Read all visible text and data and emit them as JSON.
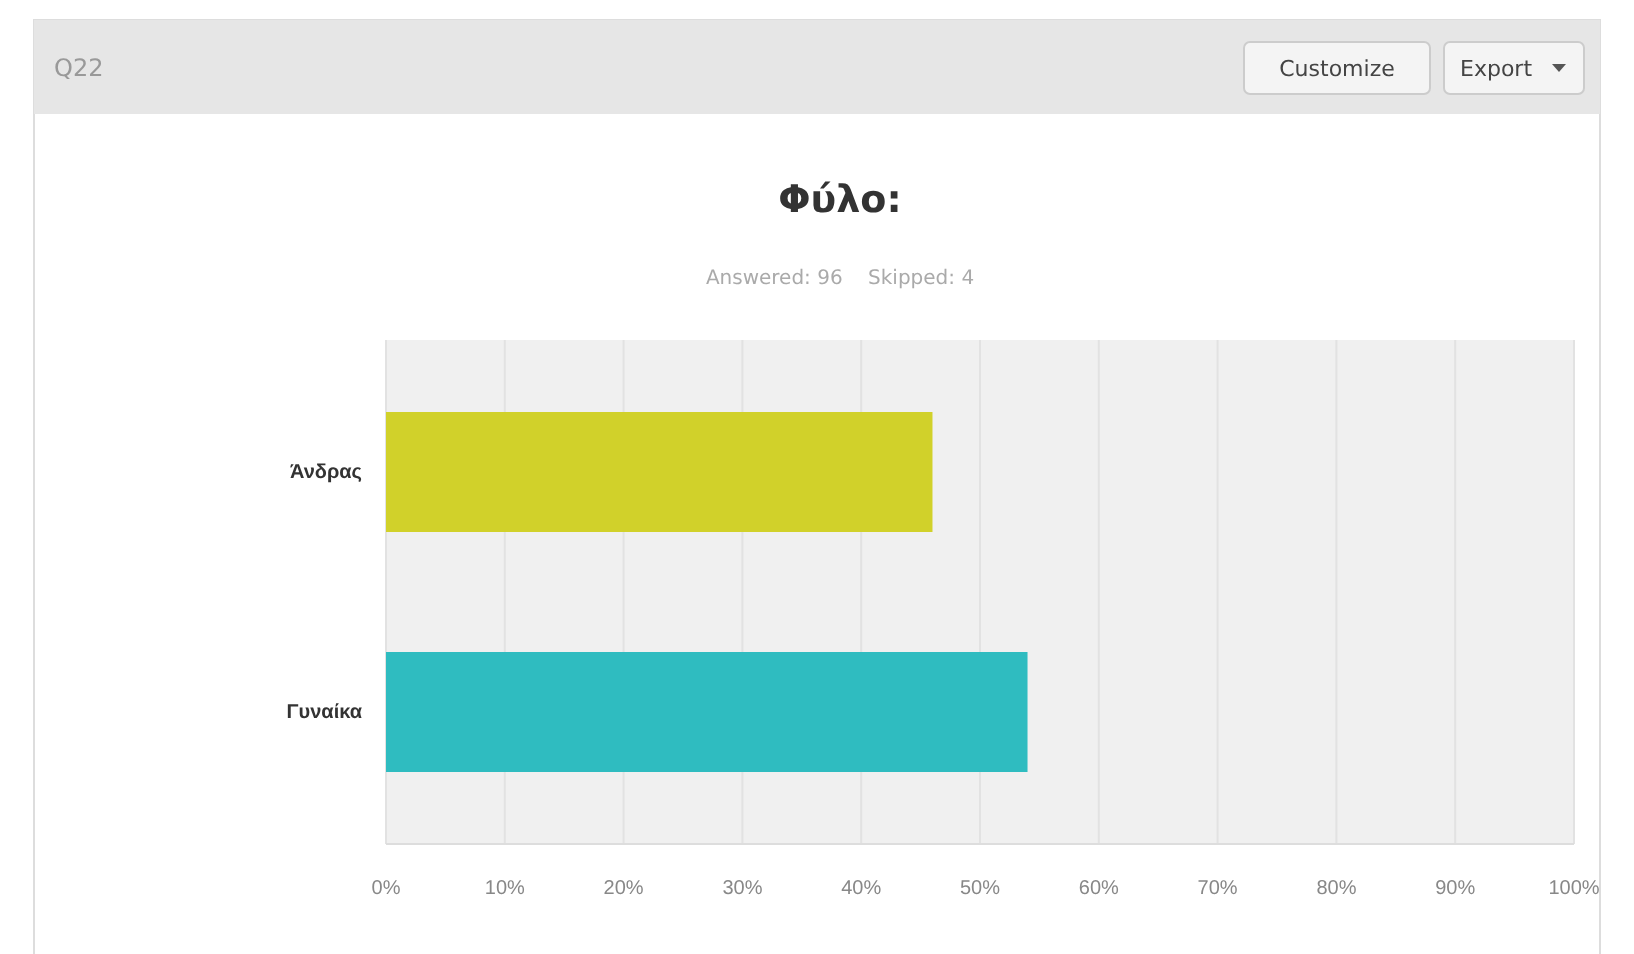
{
  "chart_data": {
    "type": "bar",
    "orientation": "horizontal",
    "title": "Φύλο:",
    "subtitle": "Answered: 96    Skipped: 4",
    "annotations": [
      "Q22",
      "Customize",
      "Export"
    ],
    "categories": [
      "Άνδρας",
      "Γυναίκα"
    ],
    "values": [
      46,
      54
    ],
    "colors": [
      "#d1d12a",
      "#2fbcc0"
    ],
    "xlim": [
      0,
      100
    ],
    "xticks": [
      {
        "value": 0,
        "label": "0%"
      },
      {
        "value": 10,
        "label": "10%"
      },
      {
        "value": 20,
        "label": "20%"
      },
      {
        "value": 30,
        "label": "30%"
      },
      {
        "value": 40,
        "label": "40%"
      },
      {
        "value": 50,
        "label": "50%"
      },
      {
        "value": 60,
        "label": "60%"
      },
      {
        "value": 70,
        "label": "70%"
      },
      {
        "value": 80,
        "label": "80%"
      },
      {
        "value": 90,
        "label": "90%"
      },
      {
        "value": 100,
        "label": "100%"
      }
    ],
    "grid": "x"
  }
}
